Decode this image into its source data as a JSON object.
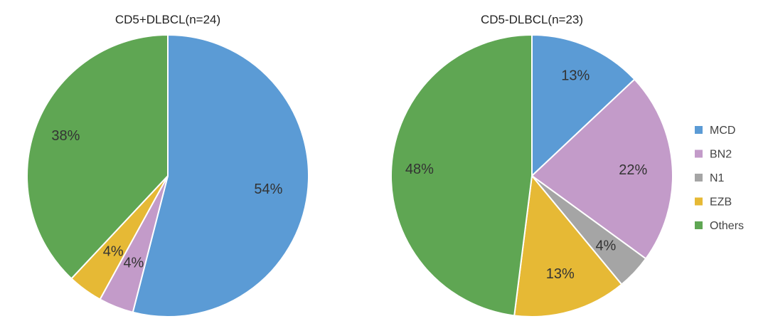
{
  "colors": {
    "MCD": "#5B9BD5",
    "BN2": "#C39BC9",
    "N1": "#A5A5A5",
    "EZB": "#E6B935",
    "Others": "#5FA653"
  },
  "legend": {
    "items": [
      {
        "label": "MCD",
        "key": "MCD"
      },
      {
        "label": "BN2",
        "key": "BN2"
      },
      {
        "label": "N1",
        "key": "N1"
      },
      {
        "label": "EZB",
        "key": "EZB"
      },
      {
        "label": "Others",
        "key": "Others"
      }
    ]
  },
  "chart_data": [
    {
      "type": "pie",
      "title": "CD5+DLBCL(n=24)",
      "slices": [
        {
          "category": "MCD",
          "value": 54,
          "label": "54%"
        },
        {
          "category": "BN2",
          "value": 4,
          "label": "4%"
        },
        {
          "category": "N1",
          "value": 0,
          "label": ""
        },
        {
          "category": "EZB",
          "value": 4,
          "label": "4%"
        },
        {
          "category": "Others",
          "value": 38,
          "label": "38%"
        }
      ]
    },
    {
      "type": "pie",
      "title": "CD5-DLBCL(n=23)",
      "slices": [
        {
          "category": "MCD",
          "value": 13,
          "label": "13%"
        },
        {
          "category": "BN2",
          "value": 22,
          "label": "22%"
        },
        {
          "category": "N1",
          "value": 4,
          "label": "4%"
        },
        {
          "category": "EZB",
          "value": 13,
          "label": "13%"
        },
        {
          "category": "Others",
          "value": 48,
          "label": "48%"
        }
      ]
    }
  ]
}
